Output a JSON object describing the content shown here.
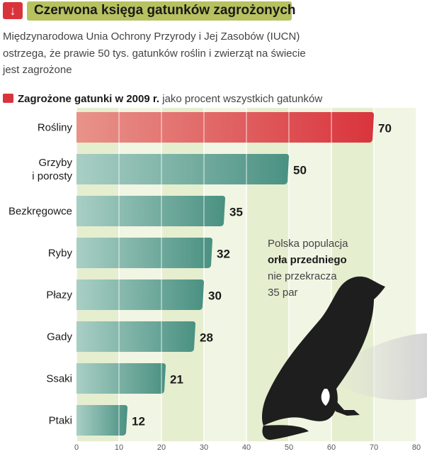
{
  "header": {
    "icon": "arrow-down-icon",
    "icon_glyph": "↓",
    "title": "Czerwona księga gatunków zagrożonych",
    "accent_color": "#b7c15f",
    "icon_color": "#d9343c"
  },
  "intro": {
    "line1": "Międzynarodowa Unia Ochrony Przyrody i Jej Zasobów (IUCN)",
    "line2": "ostrzega, że prawie 50 tys. gatunków roślin i zwierząt na świecie",
    "line3": "jest zagrożone"
  },
  "subtitle": {
    "bold": "Zagrożone gatunki w 2009 r.",
    "rest": "jako procent wszystkich gatunków"
  },
  "note": {
    "line1": "Polska populacja",
    "line2": "orła przedniego",
    "line3": "nie przekracza",
    "line4": "35 par"
  },
  "chart_data": {
    "type": "bar",
    "orientation": "horizontal",
    "categories": [
      "Rośliny",
      "Grzyby\ni porosty",
      "Bezkręgowce",
      "Ryby",
      "Płazy",
      "Gady",
      "Ssaki",
      "Ptaki"
    ],
    "values": [
      70,
      50,
      35,
      32,
      30,
      28,
      21,
      12
    ],
    "xlim": [
      0,
      80
    ],
    "xticks": [
      0,
      10,
      20,
      30,
      40,
      50,
      60,
      70,
      80
    ],
    "grid": true,
    "colors": {
      "highlight": "#d9343c",
      "highlight_light": "#e8938b",
      "bar": "#4a9182",
      "bar_light": "#a9cfc5",
      "grid_band_a": "#e6eed0",
      "grid_band_b": "#f1f5e3"
    }
  }
}
